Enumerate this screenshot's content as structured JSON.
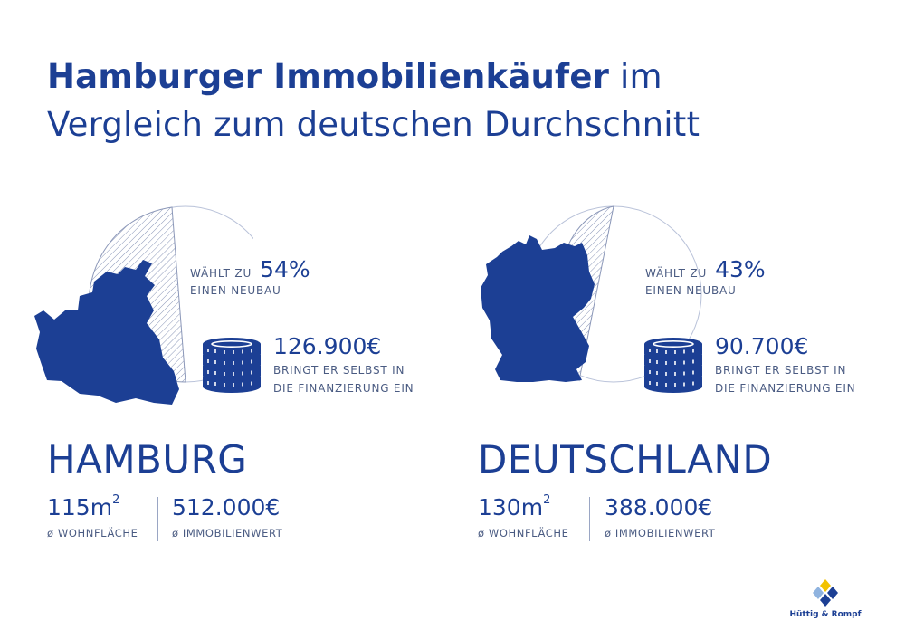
{
  "header": {
    "title_bold": "Hamburger Immobilienkäufer",
    "title_rest": " im",
    "title_line2": "Vergleich zum deutschen Durchschnitt"
  },
  "hamburg": {
    "neubau_lead": "WÄHLT ZU",
    "neubau_pct": "54%",
    "neubau_sub": "EINEN NEUBAU",
    "neubau_fraction": 0.54,
    "equity": "126.900€",
    "equity_line1": "BRINGT ER SELBST IN",
    "equity_line2": "DIE FINANZIERUNG EIN",
    "name": "HAMBURG",
    "area_value": "115m",
    "area_sup": "2",
    "area_label": "ø WOHNFLÄCHE",
    "value": "512.000€",
    "value_label": "ø IMMOBILIENWERT"
  },
  "germany": {
    "neubau_lead": "WÄHLT ZU",
    "neubau_pct": "43%",
    "neubau_sub": "EINEN NEUBAU",
    "neubau_fraction": 0.43,
    "equity": "90.700€",
    "equity_line1": "BRINGT ER SELBST IN",
    "equity_line2": "DIE FINANZIERUNG EIN",
    "name": "DEUTSCHLAND",
    "area_value": "130m",
    "area_sup": "2",
    "area_label": "ø WOHNFLÄCHE",
    "value": "388.000€",
    "value_label": "ø IMMOBILIENWERT"
  },
  "logo": {
    "text": "Hüttig & Rompf"
  },
  "colors": {
    "brand_blue": "#1c3f94",
    "text_grey": "#4a5b82",
    "logo_yellow": "#f2c200",
    "logo_light": "#8fb3df"
  },
  "icons": [
    "hamburg-map-icon",
    "germany-map-icon",
    "coin-stack-icon",
    "pie-hatch-icon"
  ]
}
